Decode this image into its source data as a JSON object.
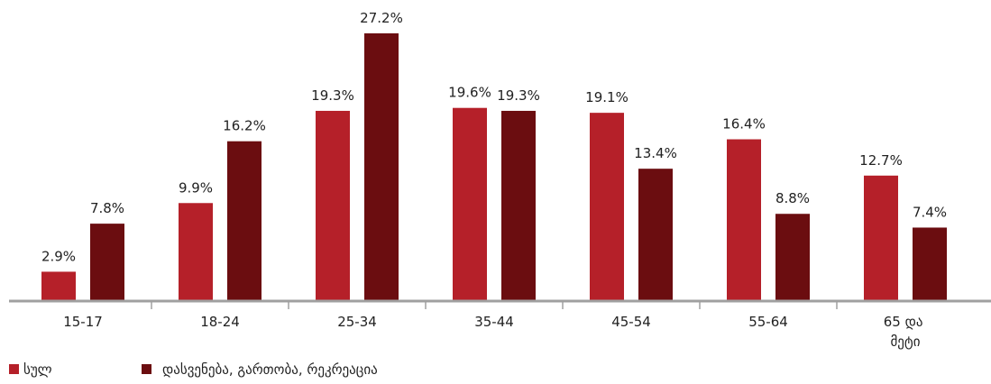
{
  "chart_data": {
    "type": "bar",
    "categories": [
      "15-17",
      "18-24",
      "25-34",
      "35-44",
      "45-54",
      "55-64",
      "65 და მეტი"
    ],
    "series": [
      {
        "name": "სულ",
        "color": "#b52029",
        "values": [
          2.9,
          9.9,
          19.3,
          19.6,
          19.1,
          16.4,
          12.7
        ],
        "value_labels": [
          "2.9%",
          "9.9%",
          "19.3%",
          "19.6%",
          "19.1%",
          "16.4%",
          "12.7%"
        ]
      },
      {
        "name": "დასვენება, გართობა, რეკრეაცია",
        "color": "#6b0d10",
        "values": [
          7.8,
          16.2,
          27.2,
          19.3,
          13.4,
          8.8,
          7.4
        ],
        "value_labels": [
          "7.8%",
          "16.2%",
          "27.2%",
          "19.3%",
          "13.4%",
          "8.8%",
          "7.4%"
        ]
      }
    ],
    "legend": "bottom-left"
  }
}
